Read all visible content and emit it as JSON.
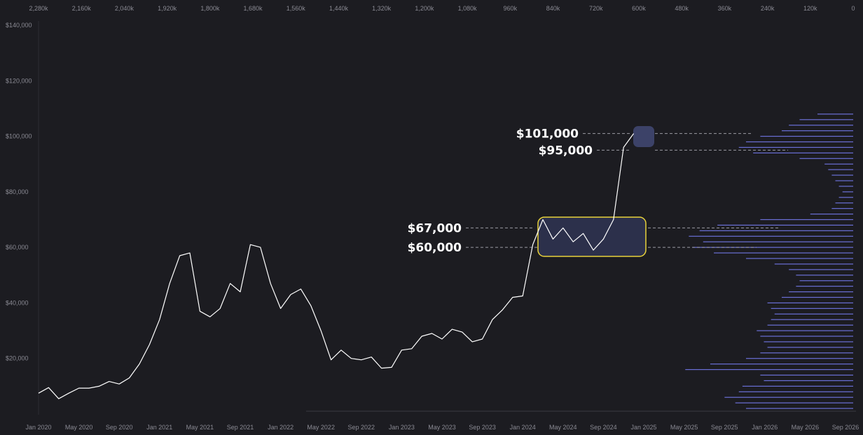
{
  "chart_data": [
    {
      "type": "line",
      "x": [
        "2020-01",
        "2020-02",
        "2020-03",
        "2020-04",
        "2020-05",
        "2020-06",
        "2020-07",
        "2020-08",
        "2020-09",
        "2020-10",
        "2020-11",
        "2020-12",
        "2021-01",
        "2021-02",
        "2021-03",
        "2021-04",
        "2021-05",
        "2021-06",
        "2021-07",
        "2021-08",
        "2021-09",
        "2021-10",
        "2021-11",
        "2021-12",
        "2022-01",
        "2022-02",
        "2022-03",
        "2022-04",
        "2022-05",
        "2022-06",
        "2022-07",
        "2022-08",
        "2022-09",
        "2022-10",
        "2022-11",
        "2022-12",
        "2023-01",
        "2023-02",
        "2023-03",
        "2023-04",
        "2023-05",
        "2023-06",
        "2023-07",
        "2023-08",
        "2023-09",
        "2023-10",
        "2023-11",
        "2023-12",
        "2024-01",
        "2024-02",
        "2024-03",
        "2024-04",
        "2024-05",
        "2024-06",
        "2024-07",
        "2024-08",
        "2024-09",
        "2024-10",
        "2024-11",
        "2024-12"
      ],
      "values": [
        7500,
        9500,
        5500,
        7500,
        9300,
        9300,
        10000,
        11700,
        10800,
        13000,
        18000,
        25000,
        34000,
        47000,
        57000,
        58000,
        37000,
        35000,
        38000,
        47000,
        44000,
        61000,
        60000,
        47000,
        38000,
        43000,
        45000,
        39000,
        30000,
        19500,
        23000,
        20000,
        19500,
        20500,
        16500,
        16800,
        23000,
        23500,
        28000,
        29000,
        27000,
        30500,
        29500,
        26000,
        27000,
        34000,
        37500,
        42000,
        42500,
        61000,
        70000,
        63000,
        67000,
        62000,
        65000,
        59000,
        63000,
        70000,
        96000,
        101000
      ],
      "color": "#ffffff",
      "xlim": [
        "2020-01",
        "2026-09"
      ],
      "xticks": [
        {
          "value": "2020-01",
          "label": "Jan 2020"
        },
        {
          "value": "2020-05",
          "label": "May 2020"
        },
        {
          "value": "2020-09",
          "label": "Sep 2020"
        },
        {
          "value": "2021-01",
          "label": "Jan 2021"
        },
        {
          "value": "2021-05",
          "label": "May 2021"
        },
        {
          "value": "2021-09",
          "label": "Sep 2021"
        },
        {
          "value": "2022-01",
          "label": "Jan 2022"
        },
        {
          "value": "2022-05",
          "label": "May 2022"
        },
        {
          "value": "2022-09",
          "label": "Sep 2022"
        },
        {
          "value": "2023-01",
          "label": "Jan 2023"
        },
        {
          "value": "2023-05",
          "label": "May 2023"
        },
        {
          "value": "2023-09",
          "label": "Sep 2023"
        },
        {
          "value": "2024-01",
          "label": "Jan 2024"
        },
        {
          "value": "2024-05",
          "label": "May 2024"
        },
        {
          "value": "2024-09",
          "label": "Sep 2024"
        },
        {
          "value": "2025-01",
          "label": "Jan 2025"
        },
        {
          "value": "2025-05",
          "label": "May 2025"
        },
        {
          "value": "2025-09",
          "label": "Sep 2025"
        },
        {
          "value": "2026-01",
          "label": "Jan 2026"
        },
        {
          "value": "2026-05",
          "label": "May 2026"
        },
        {
          "value": "2026-09",
          "label": "Sep 2026"
        }
      ],
      "ylim": [
        0,
        140000
      ],
      "yticks": [
        {
          "value": 20000,
          "label": "$20,000"
        },
        {
          "value": 40000,
          "label": "$40,000"
        },
        {
          "value": 60000,
          "label": "$60,000"
        },
        {
          "value": 80000,
          "label": "$80,000"
        },
        {
          "value": 100000,
          "label": "$100,000"
        },
        {
          "value": 120000,
          "label": "$120,000"
        },
        {
          "value": 140000,
          "label": "$140,000"
        }
      ],
      "grid": true,
      "annotations": [
        {
          "value": 101000,
          "label": "$101,000"
        },
        {
          "value": 95000,
          "label": "$95,000"
        },
        {
          "value": 67000,
          "label": "$67,000"
        },
        {
          "value": 60000,
          "label": "$60,000"
        }
      ]
    },
    {
      "type": "bar",
      "orientation": "horizontal",
      "y": [
        2000,
        4000,
        6000,
        8000,
        10000,
        12000,
        14000,
        16000,
        18000,
        20000,
        22000,
        24000,
        26000,
        28000,
        30000,
        32000,
        34000,
        36000,
        38000,
        40000,
        42000,
        44000,
        46000,
        48000,
        50000,
        52000,
        54000,
        56000,
        58000,
        60000,
        62000,
        64000,
        66000,
        68000,
        70000,
        72000,
        74000,
        76000,
        78000,
        80000,
        82000,
        84000,
        86000,
        88000,
        90000,
        92000,
        94000,
        96000,
        98000,
        100000,
        102000,
        104000,
        106000,
        108000
      ],
      "values": [
        300,
        330,
        360,
        320,
        310,
        250,
        260,
        470,
        400,
        300,
        260,
        240,
        250,
        260,
        270,
        240,
        230,
        220,
        230,
        240,
        200,
        180,
        160,
        150,
        160,
        180,
        220,
        300,
        390,
        450,
        420,
        460,
        430,
        380,
        260,
        120,
        60,
        50,
        40,
        30,
        40,
        50,
        60,
        70,
        80,
        150,
        280,
        320,
        300,
        260,
        200,
        180,
        150,
        100
      ],
      "color": "#6a6fd6",
      "xlim": [
        2280,
        0
      ],
      "xticks": [
        {
          "value": 2280,
          "label": "2,280k"
        },
        {
          "value": 2160,
          "label": "2,160k"
        },
        {
          "value": 2040,
          "label": "2,040k"
        },
        {
          "value": 1920,
          "label": "1,920k"
        },
        {
          "value": 1800,
          "label": "1,800k"
        },
        {
          "value": 1680,
          "label": "1,680k"
        },
        {
          "value": 1560,
          "label": "1,560k"
        },
        {
          "value": 1440,
          "label": "1,440k"
        },
        {
          "value": 1320,
          "label": "1,320k"
        },
        {
          "value": 1200,
          "label": "1,200k"
        },
        {
          "value": 1080,
          "label": "1,080k"
        },
        {
          "value": 960,
          "label": "960k"
        },
        {
          "value": 840,
          "label": "840k"
        },
        {
          "value": 720,
          "label": "720k"
        },
        {
          "value": 600,
          "label": "600k"
        },
        {
          "value": 480,
          "label": "480k"
        },
        {
          "value": 360,
          "label": "360k"
        },
        {
          "value": 240,
          "label": "240k"
        },
        {
          "value": 120,
          "label": "120k"
        },
        0
      ]
    }
  ]
}
